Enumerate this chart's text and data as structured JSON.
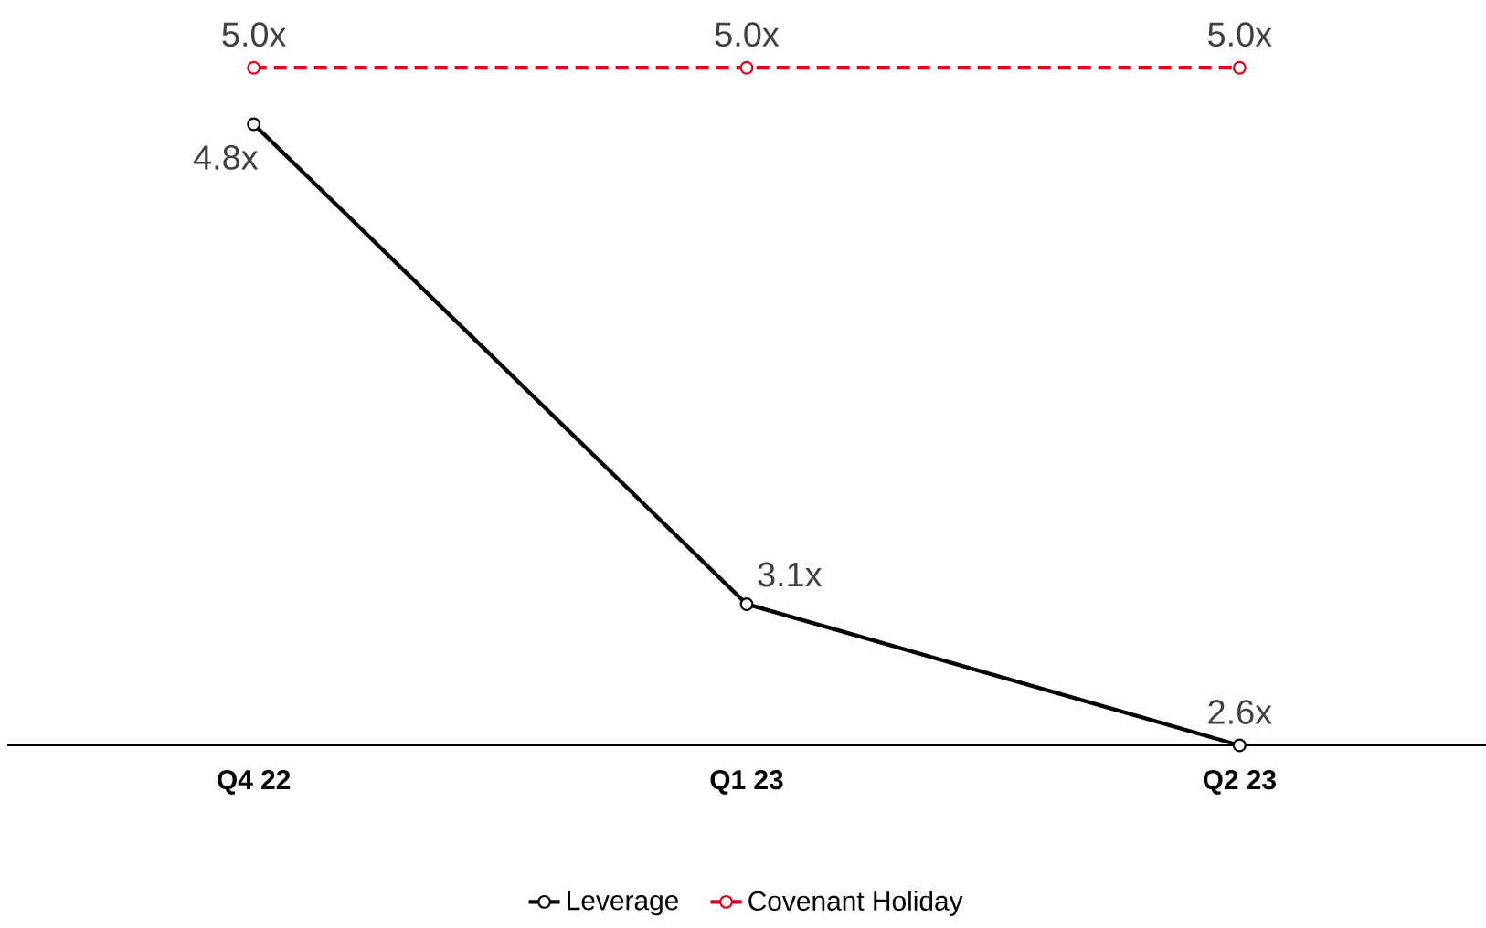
{
  "chart_data": {
    "type": "line",
    "categories": [
      "Q4 22",
      "Q1 23",
      "Q2 23"
    ],
    "series": [
      {
        "name": "Leverage",
        "color": "#000000",
        "values": [
          4.8,
          3.1,
          2.6
        ],
        "value_labels": [
          "4.8x",
          "3.1x",
          "2.6x"
        ],
        "line_style": "solid"
      },
      {
        "name": "Covenant Holiday",
        "color": "#e0001b",
        "values": [
          5.0,
          5.0,
          5.0
        ],
        "value_labels": [
          "5.0x",
          "5.0x",
          "5.0x"
        ],
        "line_style": "dashed"
      }
    ],
    "tick_labels": "x",
    "marker": "circle",
    "legend": "bottom"
  }
}
